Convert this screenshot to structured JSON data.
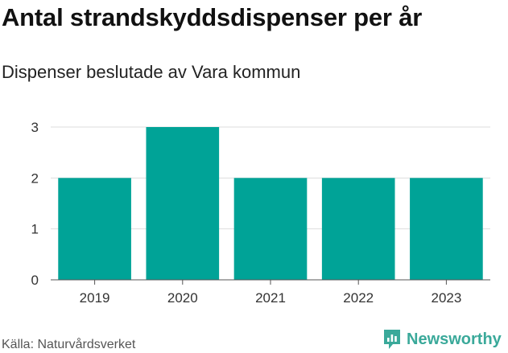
{
  "title": "Antal strandskyddsdispenser per år",
  "subtitle": "Dispenser beslutade av Vara kommun",
  "source": "Källa: Naturvårdsverket",
  "brand": {
    "name": "Newsworthy",
    "icon": "newsworthy-logo-icon",
    "color": "#3aa99a"
  },
  "chart_data": {
    "type": "bar",
    "title": "Antal strandskyddsdispenser per år",
    "subtitle": "Dispenser beslutade av Vara kommun",
    "xlabel": "",
    "ylabel": "",
    "categories": [
      "2019",
      "2020",
      "2021",
      "2022",
      "2023"
    ],
    "values": [
      2,
      3,
      2,
      2,
      2
    ],
    "ylim": [
      0,
      3
    ],
    "yticks": [
      0,
      1,
      2,
      3
    ],
    "grid": true,
    "bar_color": "#00a397"
  }
}
